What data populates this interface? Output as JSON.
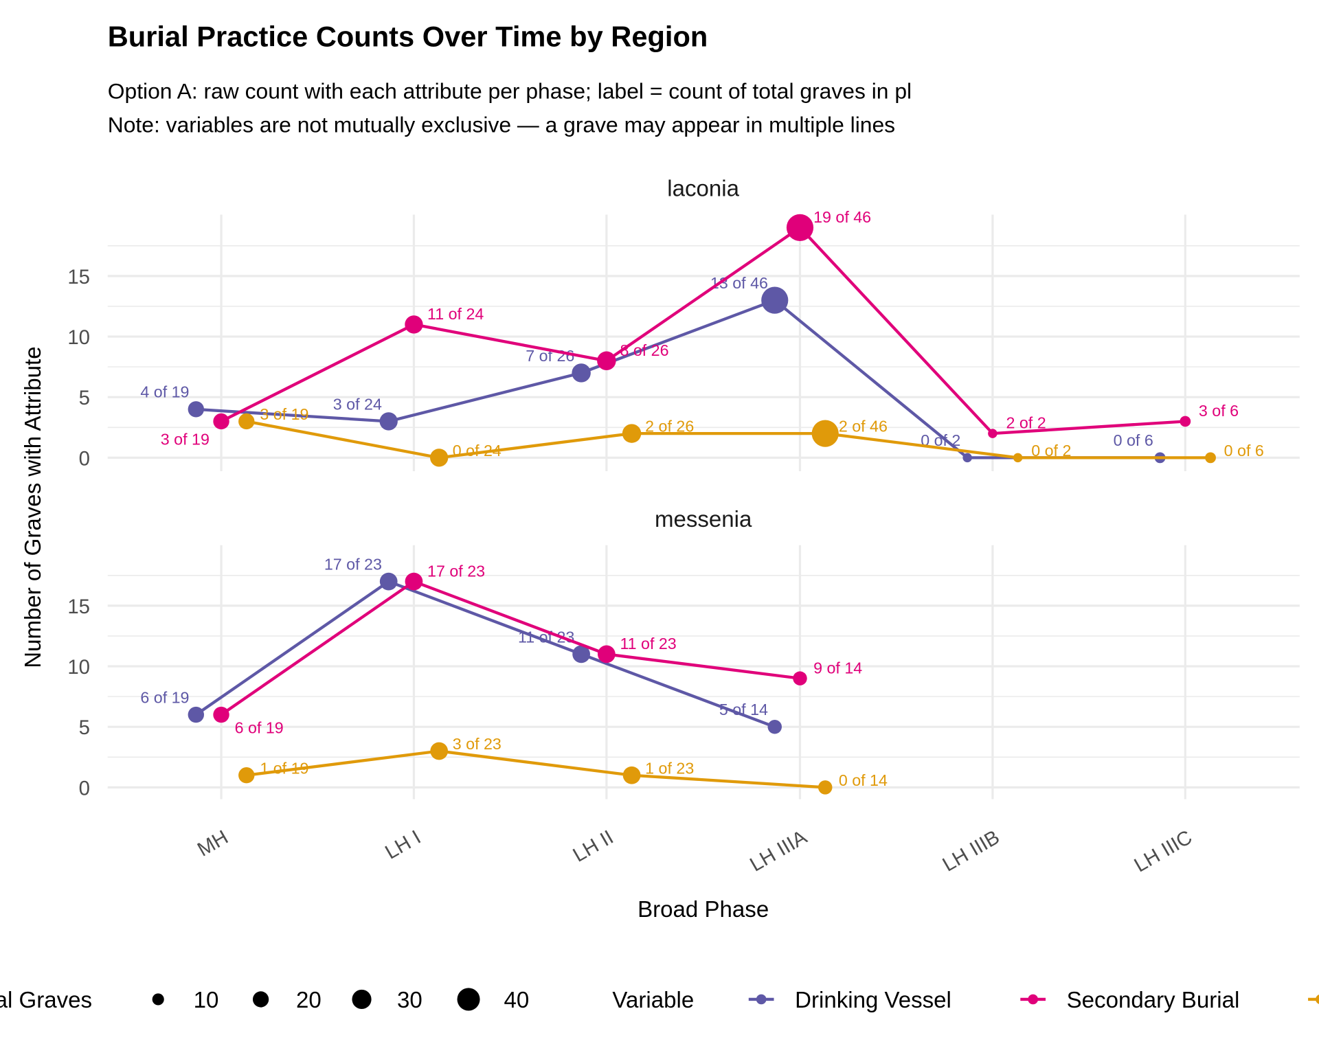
{
  "title": "Burial Practice Counts Over Time by Region",
  "subtitle_line1": "Option A: raw count with each attribute per phase; label = count of total graves in pl",
  "subtitle_line2": "Note: variables are not mutually exclusive — a grave may appear in multiple lines",
  "colors": {
    "drinking_vessel": "#5E58A6",
    "secondary_burial": "#E0007A",
    "third_series": "#E09A0A",
    "grid": "#EBEBEB"
  },
  "chart_data": {
    "type": "line",
    "facet_by": "region",
    "xlabel": "Broad Phase",
    "ylabel": "Number of Graves with Attribute",
    "categories": [
      "MH",
      "LH I",
      "LH II",
      "LH IIIA",
      "LH IIIB",
      "LH IIIC"
    ],
    "ylim": [
      0,
      19
    ],
    "yticks": [
      0,
      5,
      10,
      15
    ],
    "grid": true,
    "label_format": "{count} of {total}",
    "panels": [
      {
        "name": "laconia",
        "totals": [
          19,
          24,
          26,
          46,
          2,
          6
        ],
        "series": [
          {
            "key": "drinking_vessel",
            "name": "Drinking Vessel",
            "values": [
              4,
              3,
              7,
              13,
              0,
              0
            ]
          },
          {
            "key": "secondary_burial",
            "name": "Secondary Burial",
            "values": [
              3,
              11,
              8,
              19,
              2,
              3
            ]
          },
          {
            "key": "third_series",
            "name": "",
            "values": [
              3,
              0,
              2,
              2,
              0,
              0
            ]
          }
        ]
      },
      {
        "name": "messenia",
        "totals": [
          19,
          23,
          23,
          14,
          null,
          null
        ],
        "series": [
          {
            "key": "drinking_vessel",
            "name": "Drinking Vessel",
            "values": [
              6,
              17,
              11,
              5,
              null,
              null
            ]
          },
          {
            "key": "secondary_burial",
            "name": "Secondary Burial",
            "values": [
              6,
              17,
              11,
              9,
              null,
              null
            ]
          },
          {
            "key": "third_series",
            "name": "",
            "values": [
              1,
              3,
              1,
              0,
              null,
              null
            ]
          }
        ]
      }
    ],
    "legend": {
      "placement": "bottom",
      "size_title": "al Graves",
      "size_breaks": [
        10,
        20,
        30,
        40
      ],
      "color_title": "Variable",
      "color_entries": [
        "Drinking Vessel",
        "Secondary Burial"
      ]
    }
  }
}
